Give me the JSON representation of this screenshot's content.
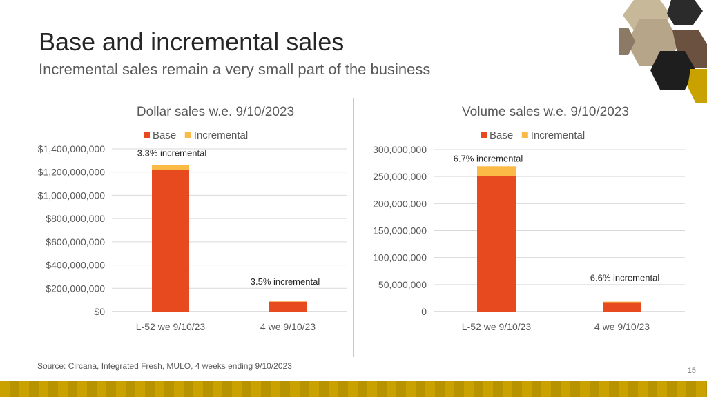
{
  "slide": {
    "title": "Base and incremental sales",
    "subtitle": "Incremental sales remain a very small part of the business",
    "source": "Source: Circana, Integrated Fresh, MULO, 4 weeks ending 9/10/2023",
    "page_number": "15"
  },
  "colors": {
    "base": "#E84A1F",
    "incremental": "#FBB946",
    "grid": "#D9D9D9",
    "divider": "#F0B8A6",
    "band": "#C9A200"
  },
  "chart_data": [
    {
      "type": "bar",
      "stacked": true,
      "title": "Dollar sales w.e. 9/10/2023",
      "categories": [
        "L-52 we 9/10/23",
        "4 we 9/10/23"
      ],
      "series": [
        {
          "name": "Base",
          "color": "#E84A1F",
          "values": [
            1220000000,
            85000000
          ]
        },
        {
          "name": "Incremental",
          "color": "#FBB946",
          "values": [
            42000000,
            3000000
          ]
        }
      ],
      "annotations": [
        "3.3% incremental",
        "3.5% incremental"
      ],
      "ylim": [
        0,
        1400000000
      ],
      "yticks": [
        0,
        200000000,
        400000000,
        600000000,
        800000000,
        1000000000,
        1200000000,
        1400000000
      ],
      "ytick_labels": [
        "$0",
        "$200,000,000",
        "$400,000,000",
        "$600,000,000",
        "$800,000,000",
        "$1,000,000,000",
        "$1,200,000,000",
        "$1,400,000,000"
      ],
      "legend": "top",
      "grid": true
    },
    {
      "type": "bar",
      "stacked": true,
      "title": "Volume sales w.e. 9/10/2023",
      "categories": [
        "L-52 we 9/10/23",
        "4 we 9/10/23"
      ],
      "series": [
        {
          "name": "Base",
          "color": "#E84A1F",
          "values": [
            251000000,
            17200000
          ]
        },
        {
          "name": "Incremental",
          "color": "#FBB946",
          "values": [
            18000000,
            1200000
          ]
        }
      ],
      "annotations": [
        "6.7% incremental",
        "6.6% incremental"
      ],
      "ylim": [
        0,
        300000000
      ],
      "yticks": [
        0,
        50000000,
        100000000,
        150000000,
        200000000,
        250000000,
        300000000
      ],
      "ytick_labels": [
        "0",
        "50,000,000",
        "100,000,000",
        "150,000,000",
        "200,000,000",
        "250,000,000",
        "300,000,000"
      ],
      "legend": "top",
      "grid": true
    }
  ]
}
